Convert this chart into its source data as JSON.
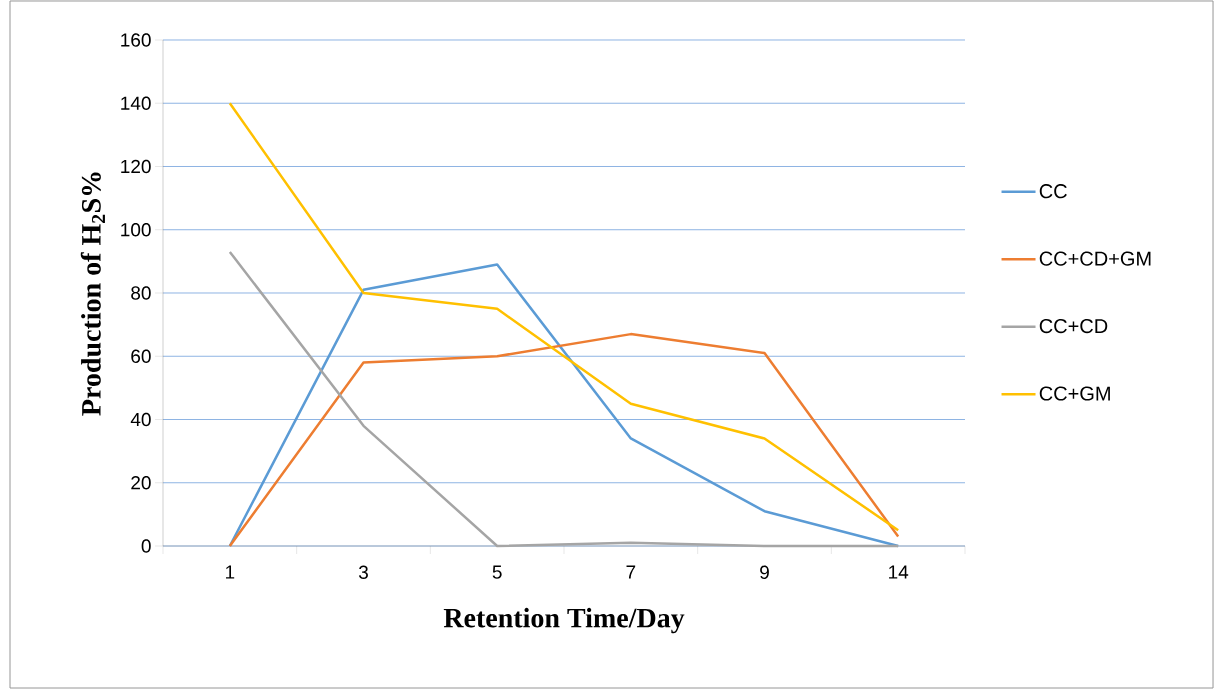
{
  "chart_data": {
    "type": "line",
    "xlabel": "Retention Time/Day",
    "ylabel": "Production of H$_{2}$S%",
    "categories": [
      "1",
      "3",
      "5",
      "7",
      "9",
      "14"
    ],
    "series": [
      {
        "name": "CC",
        "color": "#5b9bd5",
        "values": [
          0,
          81,
          89,
          34,
          11,
          0
        ]
      },
      {
        "name": "CC+CD+GM",
        "color": "#ed7d31",
        "values": [
          0,
          58,
          60,
          67,
          61,
          3
        ]
      },
      {
        "name": "CC+CD",
        "color": "#a5a5a5",
        "values": [
          93,
          38,
          0,
          1,
          0,
          0
        ]
      },
      {
        "name": "CC+GM",
        "color": "#ffc000",
        "values": [
          140,
          80,
          75,
          45,
          34,
          5
        ]
      }
    ],
    "ylim": [
      0,
      160
    ],
    "yticks": [
      0,
      20,
      40,
      60,
      80,
      100,
      120,
      140,
      160
    ],
    "grid": "y",
    "legend": "right",
    "marker": "none",
    "line_style": "solid"
  }
}
